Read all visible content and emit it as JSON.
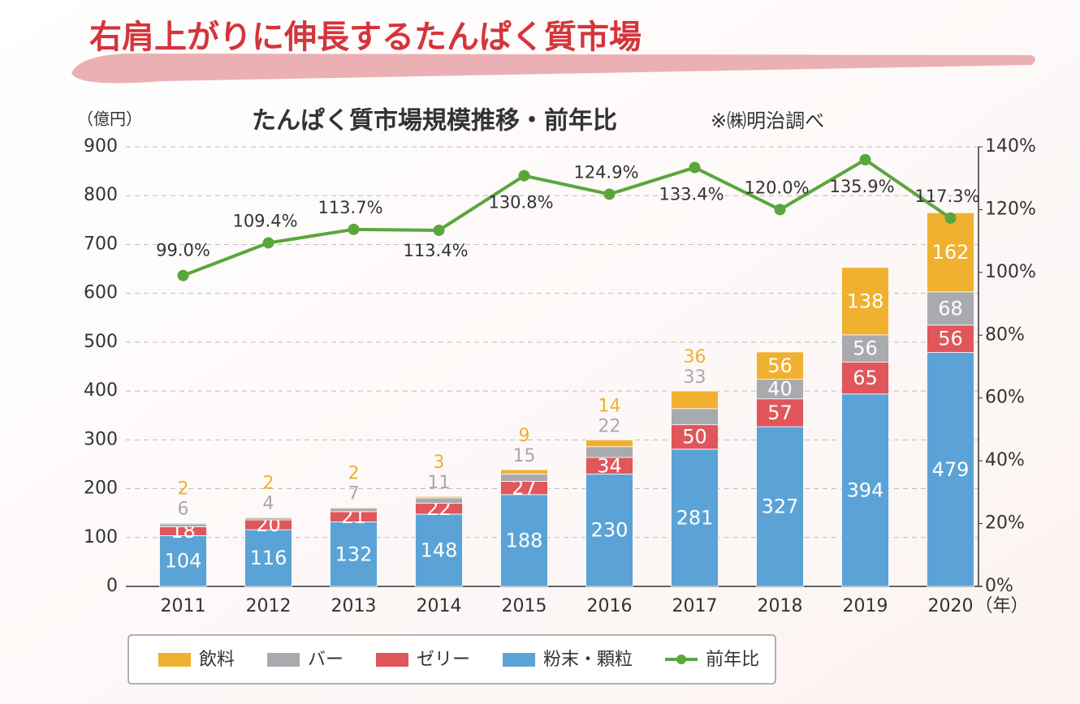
{
  "header": {
    "title": "右肩上がりに伸長するたんぱく質市場"
  },
  "chart_data": {
    "type": "stacked-bar-line",
    "title": "たんぱく質市場規模推移・前年比",
    "note": "※㈱明治調べ",
    "y_label": "（億円）",
    "x_unit": "（年）",
    "categories": [
      "2011",
      "2012",
      "2013",
      "2014",
      "2015",
      "2016",
      "2017",
      "2018",
      "2019",
      "2020"
    ],
    "series": [
      {
        "name": "飲料",
        "color": "#f0b030",
        "values": [
          2,
          2,
          2,
          3,
          9,
          14,
          36,
          56,
          138,
          162
        ]
      },
      {
        "name": "バー",
        "color": "#a8aaad",
        "values": [
          6,
          4,
          7,
          11,
          15,
          22,
          33,
          40,
          56,
          68
        ]
      },
      {
        "name": "ゼリー",
        "color": "#e0565b",
        "values": [
          18,
          20,
          21,
          22,
          27,
          34,
          50,
          57,
          65,
          56
        ]
      },
      {
        "name": "粉末・顆粒",
        "color": "#5ba3d6",
        "values": [
          104,
          116,
          132,
          148,
          188,
          230,
          281,
          327,
          394,
          479
        ]
      },
      {
        "name": "前年比",
        "color": "#5aa63c",
        "axis": "y2",
        "values": [
          99.0,
          109.4,
          113.7,
          113.4,
          130.8,
          124.9,
          133.4,
          120.0,
          135.9,
          117.3
        ],
        "value_labels": [
          "99.0%",
          "109.4%",
          "113.7%",
          "113.4%",
          "130.8%",
          "124.9%",
          "133.4%",
          "120.0%",
          "135.9%",
          "117.3%"
        ]
      }
    ],
    "ylim": [
      0,
      900
    ],
    "yticks": [
      0,
      100,
      200,
      300,
      400,
      500,
      600,
      700,
      800,
      900
    ],
    "y2lim": [
      0,
      140
    ],
    "y2ticks": [
      {
        "value": 0,
        "label": "0%"
      },
      {
        "value": 20,
        "label": "20%"
      },
      {
        "value": 40,
        "label": "40%"
      },
      {
        "value": 60,
        "label": "60%"
      },
      {
        "value": 80,
        "label": "80%"
      },
      {
        "value": 100,
        "label": "100%"
      },
      {
        "value": 120,
        "label": "120%"
      },
      {
        "value": 140,
        "label": "140%"
      }
    ],
    "grid": true
  }
}
